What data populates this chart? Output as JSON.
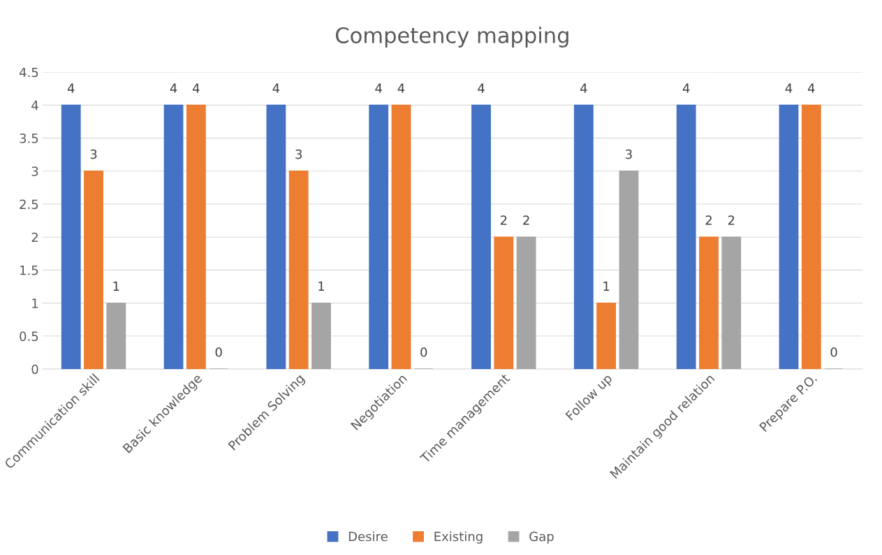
{
  "chart_data": {
    "type": "bar",
    "title": "Competency mapping",
    "categories": [
      "Communication skill",
      "Basic knowledge",
      "Problem Solving",
      "Negotiation",
      "Time management",
      "Follow up",
      "Maintain good relation",
      "Prepare P.O."
    ],
    "series": [
      {
        "name": "Desire",
        "color": "#4472c4",
        "values": [
          4,
          4,
          4,
          4,
          4,
          4,
          4,
          4
        ]
      },
      {
        "name": "Existing",
        "color": "#ed7d31",
        "values": [
          3,
          4,
          3,
          4,
          2,
          1,
          2,
          4
        ]
      },
      {
        "name": "Gap",
        "color": "#a5a5a5",
        "values": [
          1,
          0,
          1,
          0,
          2,
          3,
          2,
          0
        ]
      }
    ],
    "ylim": [
      0,
      4.5
    ],
    "yticks": [
      0,
      0.5,
      1,
      1.5,
      2,
      2.5,
      3,
      3.5,
      4,
      4.5
    ],
    "grid": "y",
    "legend": "bottom",
    "data_labels": true
  }
}
